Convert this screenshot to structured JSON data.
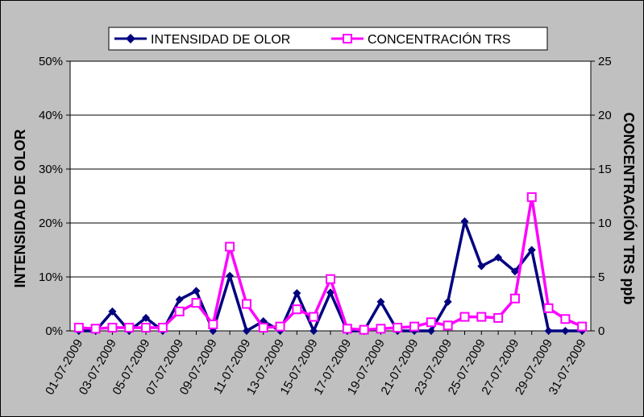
{
  "chart_data": {
    "type": "line",
    "title": "",
    "x": [
      "01-07-2009",
      "02-07-2009",
      "03-07-2009",
      "04-07-2009",
      "05-07-2009",
      "06-07-2009",
      "07-07-2009",
      "08-07-2009",
      "09-07-2009",
      "10-07-2009",
      "11-07-2009",
      "12-07-2009",
      "13-07-2009",
      "14-07-2009",
      "15-07-2009",
      "16-07-2009",
      "17-07-2009",
      "18-07-2009",
      "19-07-2009",
      "20-07-2009",
      "21-07-2009",
      "22-07-2009",
      "23-07-2009",
      "24-07-2009",
      "25-07-2009",
      "26-07-2009",
      "27-07-2009",
      "28-07-2009",
      "29-07-2009",
      "30-07-2009",
      "31-07-2009"
    ],
    "x_tick_labels": [
      "01-07-2009",
      "03-07-2009",
      "05-07-2009",
      "07-07-2009",
      "09-07-2009",
      "11-07-2009",
      "13-07-2009",
      "15-07-2009",
      "17-07-2009",
      "19-07-2009",
      "21-07-2009",
      "23-07-2009",
      "25-07-2009",
      "27-07-2009",
      "29-07-2009",
      "31-07-2009"
    ],
    "ylabel_left": "INTENSIDAD  DE OLOR",
    "ylabel_right": "CONCENTRACIÓN  TRS ppb",
    "ylim_left": [
      0,
      50
    ],
    "ylim_right": [
      0,
      25
    ],
    "y_ticks_left": [
      "0%",
      "10%",
      "20%",
      "30%",
      "40%",
      "50%"
    ],
    "y_ticks_right": [
      "0",
      "5",
      "10",
      "15",
      "20",
      "25"
    ],
    "grid": "horizontal",
    "legend_position": "top",
    "plot_background": "#ffffff",
    "frame_background": "#c0c0c0",
    "series": [
      {
        "name": "INTENSIDAD DE OLOR",
        "axis": "left",
        "unit": "%",
        "color": "#000080",
        "marker": "diamond",
        "values": [
          0,
          0,
          3.6,
          0,
          2.4,
          0,
          5.8,
          7.4,
          0,
          10.2,
          0,
          1.8,
          0,
          7.0,
          0,
          7.1,
          0,
          0,
          5.4,
          0,
          0,
          0,
          5.4,
          20.3,
          12.0,
          13.6,
          11.0,
          15.0,
          0,
          0,
          0
        ]
      },
      {
        "name": "CONCENTRACIÓN TRS",
        "axis": "right",
        "unit": "ppb",
        "color": "#ff00ff",
        "marker": "square",
        "values": [
          0.3,
          0.2,
          0.3,
          0.3,
          0.3,
          0.3,
          1.8,
          2.6,
          0.6,
          7.8,
          2.5,
          0.3,
          0.4,
          2.0,
          1.3,
          4.8,
          0.2,
          0.1,
          0.2,
          0.3,
          0.4,
          0.8,
          0.5,
          1.3,
          1.3,
          1.2,
          3.0,
          12.4,
          2.1,
          1.1,
          0.4
        ]
      }
    ]
  }
}
